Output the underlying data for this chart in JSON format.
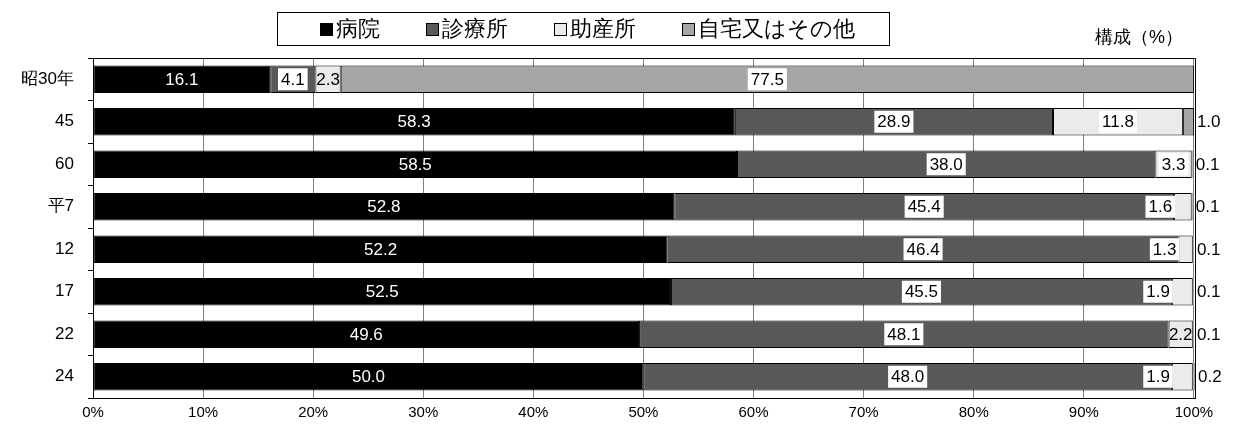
{
  "chart_data": {
    "type": "bar",
    "orientation": "horizontal",
    "stacked": true,
    "categories": [
      "昭30年",
      "45",
      "60",
      "平7",
      "12",
      "17",
      "22",
      "24"
    ],
    "series": [
      {
        "name": "病院",
        "color": "#000000",
        "values": [
          16.1,
          58.3,
          58.5,
          52.8,
          52.2,
          52.5,
          49.6,
          50.0
        ],
        "value_labels": [
          "16.1",
          "58.3",
          "58.5",
          "52.8",
          "52.2",
          "52.5",
          "49.6",
          "50.0"
        ]
      },
      {
        "name": "診療所",
        "color": "#595959",
        "values": [
          4.1,
          28.9,
          38.0,
          45.4,
          46.4,
          45.5,
          48.1,
          48.0
        ],
        "value_labels": [
          "4.1",
          "28.9",
          "38.0",
          "45.4",
          "46.4",
          "45.5",
          "48.1",
          "48.0"
        ]
      },
      {
        "name": "助産所",
        "color": "#ebebeb",
        "values": [
          2.3,
          11.8,
          3.3,
          1.6,
          1.3,
          1.9,
          2.2,
          1.9
        ],
        "value_labels": [
          "2.3",
          "11.8",
          "3.3",
          "1.6",
          "1.3",
          "1.9",
          "2.2",
          "1.9"
        ]
      },
      {
        "name": "自宅又はその他",
        "color": "#a6a6a6",
        "values": [
          77.5,
          1.0,
          0.1,
          0.1,
          0.1,
          0.1,
          0.1,
          0.2
        ],
        "value_labels": [
          "77.5",
          "1.0",
          "0.1",
          "0.1",
          "0.1",
          "0.1",
          "0.1",
          "0.2"
        ]
      }
    ],
    "xlabel": "構成（%）",
    "xlim": [
      0,
      100.1
    ],
    "xticks": [
      {
        "value": 0,
        "label": "0%"
      },
      {
        "value": 10,
        "label": "10%"
      },
      {
        "value": 20,
        "label": "20%"
      },
      {
        "value": 30,
        "label": "30%"
      },
      {
        "value": 40,
        "label": "40%"
      },
      {
        "value": 50,
        "label": "50%"
      },
      {
        "value": 60,
        "label": "60%"
      },
      {
        "value": 70,
        "label": "70%"
      },
      {
        "value": 80,
        "label": "80%"
      },
      {
        "value": 90,
        "label": "90%"
      },
      {
        "value": 100,
        "label": "100%"
      }
    ],
    "grid": "x",
    "legend": "top"
  }
}
